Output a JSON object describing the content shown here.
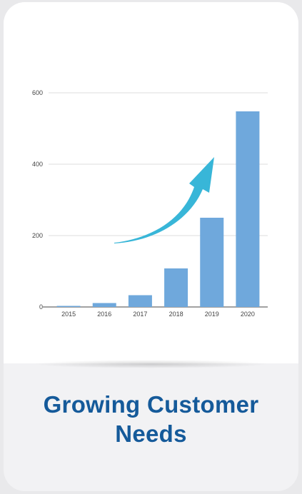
{
  "card": {
    "title_line1": "Growing Customer",
    "title_line2": "Needs"
  },
  "colors": {
    "bar": "#6fa8dc",
    "arrow": "#38b6d8",
    "title": "#155a9a"
  },
  "chart_data": {
    "type": "bar",
    "categories": [
      "2015",
      "2016",
      "2017",
      "2018",
      "2019",
      "2020"
    ],
    "values": [
      3,
      11,
      33,
      108,
      250,
      548
    ],
    "ylim": [
      0,
      600
    ],
    "yticks": [
      0,
      200,
      400,
      600
    ],
    "grid": true,
    "annotation": "upward-trend-arrow"
  }
}
